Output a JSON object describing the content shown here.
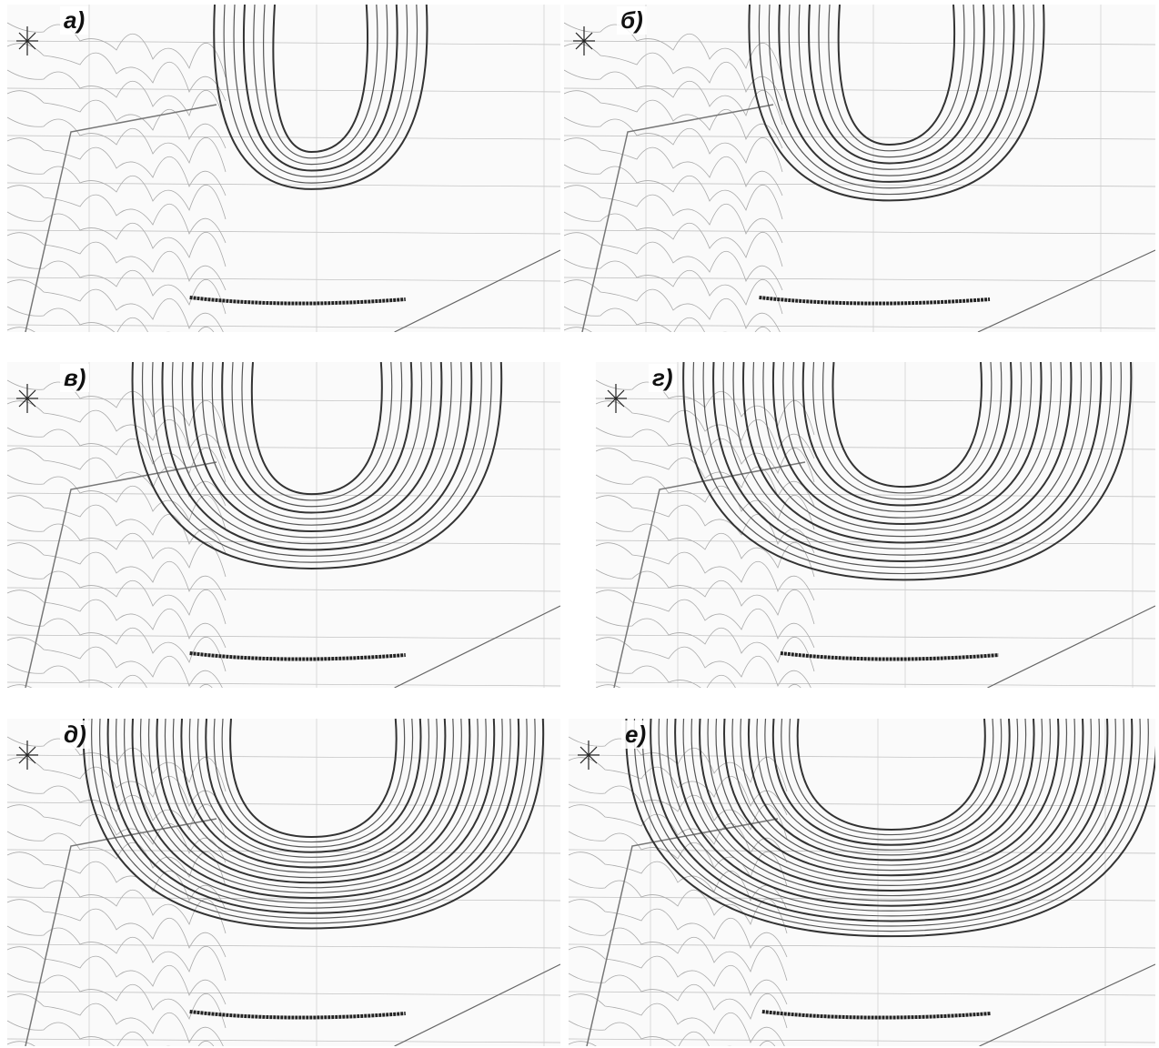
{
  "panels": [
    {
      "label": "а)"
    },
    {
      "label": "б)"
    },
    {
      "label": "в)"
    },
    {
      "label": "г)"
    },
    {
      "label": "д)"
    },
    {
      "label": "е)"
    }
  ]
}
